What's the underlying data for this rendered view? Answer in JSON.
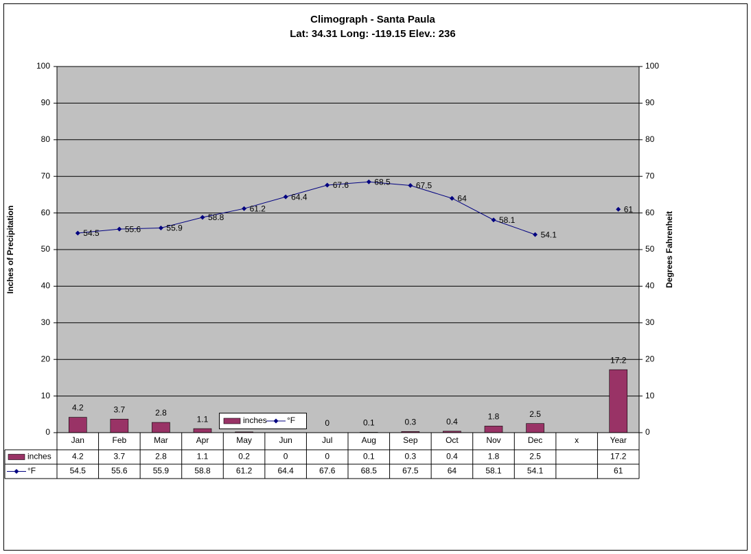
{
  "chart_data": {
    "type": "bar_line",
    "title": "Climograph - Santa Paula",
    "subtitle": "Lat: 34.31 Long: -119.15 Elev.: 236",
    "y_label": "Inches of Precipitation",
    "y2_label": "Degrees Fahrenheit",
    "categories": [
      "Jan",
      "Feb",
      "Mar",
      "Apr",
      "May",
      "Jun",
      "Jul",
      "Aug",
      "Sep",
      "Oct",
      "Nov",
      "Dec",
      "x",
      "Year"
    ],
    "series": [
      {
        "name": "inches",
        "type": "bar",
        "color": "#993366",
        "values": [
          4.2,
          3.7,
          2.8,
          1.1,
          0.2,
          0,
          0,
          0.1,
          0.3,
          0.4,
          1.8,
          2.5,
          null,
          17.2
        ]
      },
      {
        "name": "°F",
        "type": "line",
        "axis": "y2",
        "color": "#000080",
        "values": [
          54.5,
          55.6,
          55.9,
          58.8,
          61.2,
          64.4,
          67.6,
          68.5,
          67.5,
          64,
          58.1,
          54.1,
          null,
          61
        ]
      }
    ],
    "ylim": [
      0,
      100
    ],
    "yticks": [
      0,
      10,
      20,
      30,
      40,
      50,
      60,
      70,
      80,
      90,
      100
    ],
    "y2lim": [
      0,
      100
    ],
    "y2ticks": [
      0,
      10,
      20,
      30,
      40,
      50,
      60,
      70,
      80,
      90,
      100
    ],
    "grid": true
  }
}
